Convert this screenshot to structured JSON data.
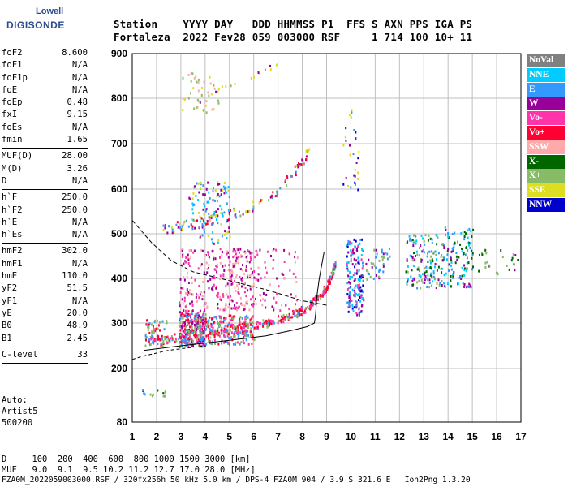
{
  "logo": {
    "line1": "Lowell",
    "line2": "DIGISONDE"
  },
  "header": {
    "row1": "Station    YYYY DAY   DDD HHMMSS P1  FFS S AXN PPS IGA PS",
    "row2": "Fortaleza  2022 Fev28 059 003000 RSF     1 714 100 10+ 11"
  },
  "params": [
    {
      "k": "foF2",
      "v": "8.600"
    },
    {
      "k": "foF1",
      "v": "N/A"
    },
    {
      "k": "foF1p",
      "v": "N/A"
    },
    {
      "k": "foE",
      "v": "N/A"
    },
    {
      "k": "foEp",
      "v": "0.48"
    },
    {
      "k": "fxI",
      "v": "9.15"
    },
    {
      "k": "foEs",
      "v": "N/A"
    },
    {
      "k": "fmin",
      "v": "1.65"
    },
    {
      "sep": true
    },
    {
      "k": "MUF(D)",
      "v": "28.00"
    },
    {
      "k": "M(D)",
      "v": "3.26"
    },
    {
      "k": "D",
      "v": "N/A"
    },
    {
      "sep": true
    },
    {
      "k": "h`F",
      "v": "250.0"
    },
    {
      "k": "h`F2",
      "v": "250.0"
    },
    {
      "k": "h`E",
      "v": "N/A"
    },
    {
      "k": "h`Es",
      "v": "N/A"
    },
    {
      "sep": true
    },
    {
      "k": "hmF2",
      "v": "302.0"
    },
    {
      "k": "hmF1",
      "v": "N/A"
    },
    {
      "k": "hmE",
      "v": "110.0"
    },
    {
      "k": "yF2",
      "v": "51.5"
    },
    {
      "k": "yF1",
      "v": "N/A"
    },
    {
      "k": "yE",
      "v": "20.0"
    },
    {
      "k": "B0",
      "v": "48.9"
    },
    {
      "k": "B1",
      "v": "2.45"
    },
    {
      "sep": true
    },
    {
      "k": "C-level",
      "v": "33"
    },
    {
      "sep": true
    }
  ],
  "autoscaling": [
    "Auto:",
    "Artist5",
    "500200"
  ],
  "legend": [
    {
      "label": "NoVal",
      "color": "#808080"
    },
    {
      "label": "NNE",
      "color": "#00ccff"
    },
    {
      "label": "E",
      "color": "#3399ff"
    },
    {
      "label": "W",
      "color": "#990099"
    },
    {
      "label": "Vo-",
      "color": "#ff33aa"
    },
    {
      "label": "Vo+",
      "color": "#ff0033"
    },
    {
      "label": "SSW",
      "color": "#ffaaaa"
    },
    {
      "label": "X-",
      "color": "#006600"
    },
    {
      "label": "X+",
      "color": "#88bb66"
    },
    {
      "label": "SSE",
      "color": "#dddd22"
    },
    {
      "label": "NNW",
      "color": "#0000cc"
    }
  ],
  "footer": {
    "d_row": "D     100  200  400  600  800 1000 1500 3000 [km]",
    "muf_row": "MUF   9.0  9.1  9.5 10.2 11.2 12.7 17.0 28.0 [MHz]",
    "file_row": "FZA0M_2022059003000.RSF / 320fx256h 50 kHz 5.0 km / DPS-4 FZA0M 904 / 3.9 S 321.6 E   Ion2Png 1.3.20"
  },
  "chart_data": {
    "type": "scatter",
    "xlim": [
      1,
      17
    ],
    "ylim": [
      80,
      900
    ],
    "x_ticks": [
      "1",
      "2",
      "3",
      "4",
      "5",
      "6",
      "7",
      "8",
      "9",
      "10",
      "11",
      "12",
      "13",
      "14",
      "15",
      "16",
      "17"
    ],
    "y_ticks": [
      "80",
      "200",
      "300",
      "400",
      "500",
      "600",
      "700",
      "800",
      "900"
    ],
    "y_tick_values": [
      80,
      200,
      300,
      400,
      500,
      600,
      700,
      800,
      900
    ],
    "grid": true,
    "trace_o": [
      [
        1.7,
        262
      ],
      [
        2.5,
        268
      ],
      [
        3.5,
        275
      ],
      [
        4.5,
        283
      ],
      [
        5.5,
        292
      ],
      [
        6.5,
        302
      ],
      [
        7.2,
        312
      ],
      [
        7.8,
        325
      ],
      [
        8.3,
        342
      ],
      [
        8.7,
        362
      ],
      [
        9.0,
        385
      ],
      [
        9.2,
        410
      ],
      [
        9.35,
        435
      ]
    ],
    "trace_x": [
      [
        2.2,
        510
      ],
      [
        3,
        520
      ],
      [
        4,
        530
      ],
      [
        5,
        545
      ],
      [
        6,
        565
      ],
      [
        7,
        600
      ],
      [
        7.8,
        650
      ],
      [
        8.3,
        690
      ]
    ],
    "trace_high": [
      [
        3.2,
        780
      ],
      [
        4.5,
        820
      ],
      [
        6,
        850
      ],
      [
        7,
        880
      ]
    ],
    "profile_solid": [
      [
        1.5,
        240
      ],
      [
        3,
        250
      ],
      [
        5,
        262
      ],
      [
        6.5,
        272
      ],
      [
        7.5,
        283
      ],
      [
        8.2,
        292
      ],
      [
        8.5,
        300
      ],
      [
        8.55,
        320
      ],
      [
        8.6,
        360
      ],
      [
        8.7,
        400
      ],
      [
        8.9,
        460
      ]
    ],
    "profile_dashed": [
      [
        1.0,
        530
      ],
      [
        1.8,
        480
      ],
      [
        2.6,
        440
      ],
      [
        3.5,
        415
      ],
      [
        5,
        395
      ],
      [
        6.5,
        375
      ],
      [
        8,
        350
      ],
      [
        9,
        340
      ]
    ],
    "profile_low": [
      [
        1.0,
        220
      ],
      [
        1.5,
        228
      ],
      [
        2.5,
        240
      ],
      [
        4,
        250
      ]
    ],
    "clusters": [
      {
        "x": [
          2.9,
          4.0
        ],
        "y": [
          250,
          330
        ],
        "c": [
          "#3399ff",
          "#ff0033",
          "#990099",
          "#ff33aa",
          "#88bb66"
        ],
        "n": 300
      },
      {
        "x": [
          4.0,
          6.0
        ],
        "y": [
          255,
          320
        ],
        "c": [
          "#3399ff",
          "#ff0033",
          "#ff33aa",
          "#88bb66"
        ],
        "n": 220
      },
      {
        "x": [
          2.9,
          6.0
        ],
        "y": [
          330,
          470
        ],
        "c": [
          "#990099",
          "#ff33aa",
          "#ffaaaa"
        ],
        "n": 260
      },
      {
        "x": [
          3.3,
          5.0
        ],
        "y": [
          480,
          620
        ],
        "c": [
          "#3399ff",
          "#00ccff",
          "#dddd22",
          "#990099"
        ],
        "n": 120
      },
      {
        "x": [
          5.0,
          7.8
        ],
        "y": [
          330,
          470
        ],
        "c": [
          "#990099",
          "#ff33aa",
          "#ffaaaa"
        ],
        "n": 90
      },
      {
        "x": [
          9.8,
          10.5
        ],
        "y": [
          320,
          490
        ],
        "c": [
          "#0000cc",
          "#990099",
          "#3399ff",
          "#ff33aa",
          "#00ccff"
        ],
        "n": 160
      },
      {
        "x": [
          12.2,
          13.8
        ],
        "y": [
          380,
          500
        ],
        "c": [
          "#00ccff",
          "#3399ff",
          "#990099",
          "#006600",
          "#88bb66"
        ],
        "n": 150
      },
      {
        "x": [
          13.8,
          15.0
        ],
        "y": [
          380,
          520
        ],
        "c": [
          "#00ccff",
          "#990099",
          "#3399ff",
          "#006600"
        ],
        "n": 110
      },
      {
        "x": [
          10.6,
          11.6
        ],
        "y": [
          400,
          470
        ],
        "c": [
          "#3399ff",
          "#88bb66",
          "#990099"
        ],
        "n": 40
      },
      {
        "x": [
          15.2,
          16.9
        ],
        "y": [
          410,
          470
        ],
        "c": [
          "#006600",
          "#88bb66",
          "#990099"
        ],
        "n": 25
      },
      {
        "x": [
          3.0,
          4.6
        ],
        "y": [
          770,
          860
        ],
        "c": [
          "#dddd22",
          "#88bb66",
          "#ffaaaa"
        ],
        "n": 40
      },
      {
        "x": [
          9.6,
          10.3
        ],
        "y": [
          600,
          790
        ],
        "c": [
          "#990099",
          "#3399ff",
          "#dddd22",
          "#0000cc"
        ],
        "n": 30
      },
      {
        "x": [
          1.4,
          2.4
        ],
        "y": [
          140,
          155
        ],
        "c": [
          "#006600",
          "#3399ff",
          "#88bb66"
        ],
        "n": 14
      },
      {
        "x": [
          1.5,
          2.4
        ],
        "y": [
          250,
          310
        ],
        "c": [
          "#3399ff",
          "#ff0033",
          "#88bb66"
        ],
        "n": 60
      }
    ]
  }
}
